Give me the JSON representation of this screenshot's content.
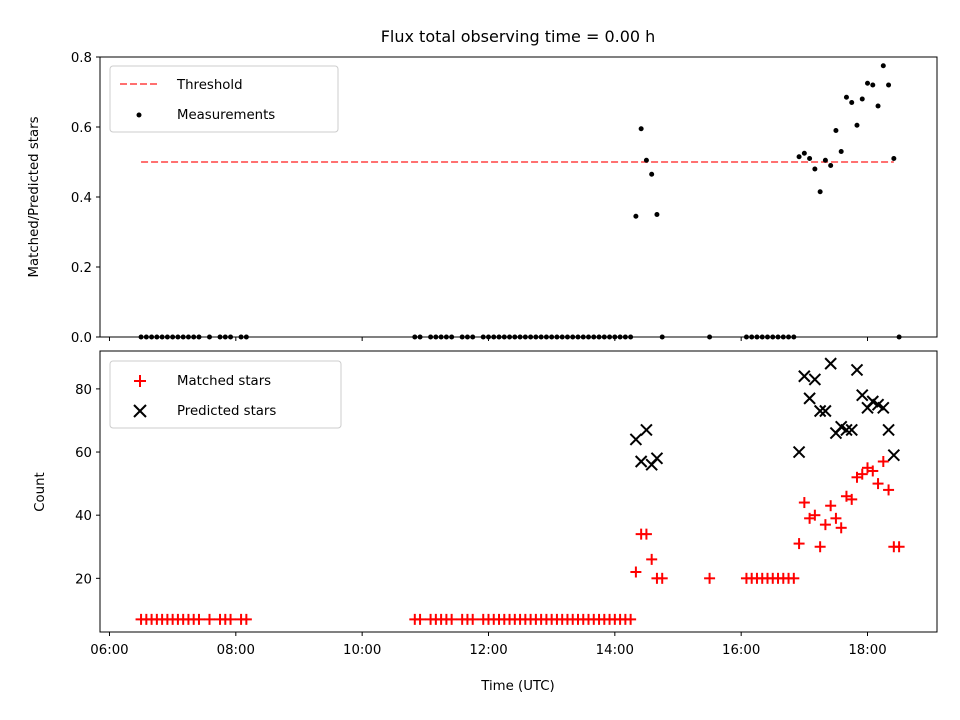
{
  "chart_data": {
    "title": "Flux total observing time = 0.00 h",
    "shared_x": {
      "label": "Time (UTC)",
      "range": [
        "05:51",
        "19:06"
      ],
      "ticks": [
        "06:00",
        "08:00",
        "10:00",
        "12:00",
        "14:00",
        "16:00",
        "18:00"
      ]
    },
    "panels": [
      {
        "type": "scatter",
        "ylabel": "Matched/Predicted stars",
        "ylim": [
          0,
          0.8
        ],
        "yticks": [
          "0.0",
          "0.2",
          "0.4",
          "0.6",
          "0.8"
        ],
        "legend_position": "top-left",
        "series": [
          {
            "name": "Threshold",
            "kind": "dashed-line",
            "color": "#ff7070",
            "points": [
              [
                "06:30",
                0.5
              ],
              [
                "18:25",
                0.5
              ]
            ]
          },
          {
            "name": "Measurements",
            "kind": "dot",
            "color": "#000000",
            "points": [
              [
                "06:30",
                0
              ],
              [
                "06:35",
                0
              ],
              [
                "06:40",
                0
              ],
              [
                "06:45",
                0
              ],
              [
                "06:50",
                0
              ],
              [
                "06:55",
                0
              ],
              [
                "07:00",
                0
              ],
              [
                "07:05",
                0
              ],
              [
                "07:10",
                0
              ],
              [
                "07:15",
                0
              ],
              [
                "07:20",
                0
              ],
              [
                "07:25",
                0
              ],
              [
                "07:35",
                0
              ],
              [
                "07:45",
                0
              ],
              [
                "07:50",
                0
              ],
              [
                "07:55",
                0
              ],
              [
                "08:05",
                0
              ],
              [
                "08:10",
                0
              ],
              [
                "10:50",
                0
              ],
              [
                "10:55",
                0
              ],
              [
                "11:05",
                0
              ],
              [
                "11:10",
                0
              ],
              [
                "11:15",
                0
              ],
              [
                "11:20",
                0
              ],
              [
                "11:25",
                0
              ],
              [
                "11:35",
                0
              ],
              [
                "11:40",
                0
              ],
              [
                "11:45",
                0
              ],
              [
                "11:55",
                0
              ],
              [
                "12:00",
                0
              ],
              [
                "12:05",
                0
              ],
              [
                "12:10",
                0
              ],
              [
                "12:15",
                0
              ],
              [
                "12:20",
                0
              ],
              [
                "12:25",
                0
              ],
              [
                "12:30",
                0
              ],
              [
                "12:35",
                0
              ],
              [
                "12:40",
                0
              ],
              [
                "12:45",
                0
              ],
              [
                "12:50",
                0
              ],
              [
                "12:55",
                0
              ],
              [
                "13:00",
                0
              ],
              [
                "13:05",
                0
              ],
              [
                "13:10",
                0
              ],
              [
                "13:15",
                0
              ],
              [
                "13:20",
                0
              ],
              [
                "13:25",
                0
              ],
              [
                "13:30",
                0
              ],
              [
                "13:35",
                0
              ],
              [
                "13:40",
                0
              ],
              [
                "13:45",
                0
              ],
              [
                "13:50",
                0
              ],
              [
                "13:55",
                0
              ],
              [
                "14:00",
                0
              ],
              [
                "14:05",
                0
              ],
              [
                "14:10",
                0
              ],
              [
                "14:15",
                0
              ],
              [
                "14:20",
                0.345
              ],
              [
                "14:25",
                0.595
              ],
              [
                "14:30",
                0.505
              ],
              [
                "14:35",
                0.465
              ],
              [
                "14:40",
                0.35
              ],
              [
                "14:45",
                0
              ],
              [
                "15:30",
                0
              ],
              [
                "16:05",
                0
              ],
              [
                "16:10",
                0
              ],
              [
                "16:15",
                0
              ],
              [
                "16:20",
                0
              ],
              [
                "16:25",
                0
              ],
              [
                "16:30",
                0
              ],
              [
                "16:35",
                0
              ],
              [
                "16:40",
                0
              ],
              [
                "16:45",
                0
              ],
              [
                "16:50",
                0
              ],
              [
                "16:55",
                0.515
              ],
              [
                "17:00",
                0.525
              ],
              [
                "17:05",
                0.51
              ],
              [
                "17:10",
                0.48
              ],
              [
                "17:15",
                0.415
              ],
              [
                "17:20",
                0.505
              ],
              [
                "17:25",
                0.49
              ],
              [
                "17:30",
                0.59
              ],
              [
                "17:35",
                0.53
              ],
              [
                "17:40",
                0.685
              ],
              [
                "17:45",
                0.67
              ],
              [
                "17:50",
                0.605
              ],
              [
                "17:55",
                0.68
              ],
              [
                "18:00",
                0.725
              ],
              [
                "18:05",
                0.72
              ],
              [
                "18:10",
                0.66
              ],
              [
                "18:15",
                0.775
              ],
              [
                "18:20",
                0.72
              ],
              [
                "18:25",
                0.51
              ],
              [
                "18:30",
                0
              ]
            ]
          }
        ]
      },
      {
        "type": "scatter",
        "ylabel": "Count",
        "ylim": [
          3,
          92
        ],
        "yticks": [
          "20",
          "40",
          "60",
          "80"
        ],
        "legend_position": "top-left",
        "series": [
          {
            "name": "Matched stars",
            "kind": "plus",
            "color": "#ff0000",
            "points": [
              [
                "06:30",
                7
              ],
              [
                "06:35",
                7
              ],
              [
                "06:40",
                7
              ],
              [
                "06:45",
                7
              ],
              [
                "06:50",
                7
              ],
              [
                "06:55",
                7
              ],
              [
                "07:00",
                7
              ],
              [
                "07:05",
                7
              ],
              [
                "07:10",
                7
              ],
              [
                "07:15",
                7
              ],
              [
                "07:20",
                7
              ],
              [
                "07:25",
                7
              ],
              [
                "07:35",
                7
              ],
              [
                "07:45",
                7
              ],
              [
                "07:50",
                7
              ],
              [
                "07:55",
                7
              ],
              [
                "08:05",
                7
              ],
              [
                "08:10",
                7
              ],
              [
                "10:50",
                7
              ],
              [
                "10:55",
                7
              ],
              [
                "11:05",
                7
              ],
              [
                "11:10",
                7
              ],
              [
                "11:15",
                7
              ],
              [
                "11:20",
                7
              ],
              [
                "11:25",
                7
              ],
              [
                "11:35",
                7
              ],
              [
                "11:40",
                7
              ],
              [
                "11:45",
                7
              ],
              [
                "11:55",
                7
              ],
              [
                "12:00",
                7
              ],
              [
                "12:05",
                7
              ],
              [
                "12:10",
                7
              ],
              [
                "12:15",
                7
              ],
              [
                "12:20",
                7
              ],
              [
                "12:25",
                7
              ],
              [
                "12:30",
                7
              ],
              [
                "12:35",
                7
              ],
              [
                "12:40",
                7
              ],
              [
                "12:45",
                7
              ],
              [
                "12:50",
                7
              ],
              [
                "12:55",
                7
              ],
              [
                "13:00",
                7
              ],
              [
                "13:05",
                7
              ],
              [
                "13:10",
                7
              ],
              [
                "13:15",
                7
              ],
              [
                "13:20",
                7
              ],
              [
                "13:25",
                7
              ],
              [
                "13:30",
                7
              ],
              [
                "13:35",
                7
              ],
              [
                "13:40",
                7
              ],
              [
                "13:45",
                7
              ],
              [
                "13:50",
                7
              ],
              [
                "13:55",
                7
              ],
              [
                "14:00",
                7
              ],
              [
                "14:05",
                7
              ],
              [
                "14:10",
                7
              ],
              [
                "14:15",
                7
              ],
              [
                "14:20",
                22
              ],
              [
                "14:25",
                34
              ],
              [
                "14:30",
                34
              ],
              [
                "14:35",
                26
              ],
              [
                "14:40",
                20
              ],
              [
                "14:45",
                20
              ],
              [
                "15:30",
                20
              ],
              [
                "16:05",
                20
              ],
              [
                "16:10",
                20
              ],
              [
                "16:15",
                20
              ],
              [
                "16:20",
                20
              ],
              [
                "16:25",
                20
              ],
              [
                "16:30",
                20
              ],
              [
                "16:35",
                20
              ],
              [
                "16:40",
                20
              ],
              [
                "16:45",
                20
              ],
              [
                "16:50",
                20
              ],
              [
                "16:55",
                31
              ],
              [
                "17:00",
                44
              ],
              [
                "17:05",
                39
              ],
              [
                "17:10",
                40
              ],
              [
                "17:15",
                30
              ],
              [
                "17:20",
                37
              ],
              [
                "17:25",
                43
              ],
              [
                "17:30",
                39
              ],
              [
                "17:35",
                36
              ],
              [
                "17:40",
                46
              ],
              [
                "17:45",
                45
              ],
              [
                "17:50",
                52
              ],
              [
                "17:55",
                53
              ],
              [
                "18:00",
                55
              ],
              [
                "18:05",
                54
              ],
              [
                "18:10",
                50
              ],
              [
                "18:15",
                57
              ],
              [
                "18:20",
                48
              ],
              [
                "18:25",
                30
              ],
              [
                "18:30",
                30
              ]
            ]
          },
          {
            "name": "Predicted stars",
            "kind": "cross",
            "color": "#000000",
            "points": [
              [
                "14:20",
                64
              ],
              [
                "14:25",
                57
              ],
              [
                "14:30",
                67
              ],
              [
                "14:35",
                56
              ],
              [
                "14:40",
                58
              ],
              [
                "16:55",
                60
              ],
              [
                "17:00",
                84
              ],
              [
                "17:05",
                77
              ],
              [
                "17:10",
                83
              ],
              [
                "17:15",
                73
              ],
              [
                "17:20",
                73
              ],
              [
                "17:25",
                88
              ],
              [
                "17:30",
                66
              ],
              [
                "17:35",
                68
              ],
              [
                "17:40",
                67
              ],
              [
                "17:45",
                67
              ],
              [
                "17:50",
                86
              ],
              [
                "17:55",
                78
              ],
              [
                "18:00",
                74
              ],
              [
                "18:05",
                76
              ],
              [
                "18:10",
                75
              ],
              [
                "18:15",
                74
              ],
              [
                "18:20",
                67
              ],
              [
                "18:25",
                59
              ]
            ]
          }
        ]
      }
    ]
  }
}
